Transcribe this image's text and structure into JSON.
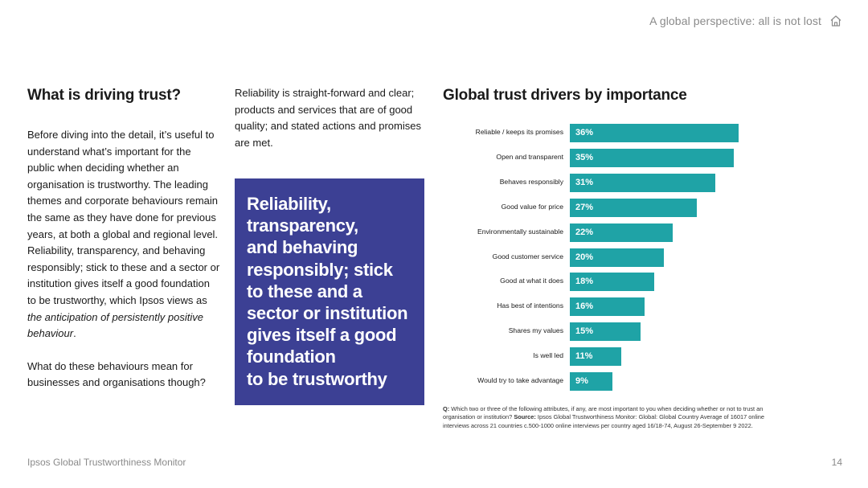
{
  "header": {
    "section_title": "A global perspective: all is not lost",
    "home_icon": "home-icon"
  },
  "left_column": {
    "heading": "What is driving trust?",
    "paragraph_plain": "Before diving into the detail, it’s useful to understand what’s important for the public when deciding whether an organisation is trustworthy. The leading themes and corporate behaviours remain the same as they have done for previous years, at both a global and regional level. Reliability, transparency, and behaving responsibly; stick to these and a sector or institution gives itself a good foundation to be trustworthy, which Ipsos views as ",
    "paragraph_italic": "the anticipation of persistently positive behaviour",
    "paragraph_end": ".",
    "question": "What do these behaviours mean for businesses and organisations though?"
  },
  "middle_column": {
    "text": "Reliability is straight-forward and clear; products and services that are of good quality; and stated actions and promises are met.",
    "quote_lines": [
      "Reliability,",
      "transparency,",
      "and behaving",
      "responsibly; stick",
      "to these and a",
      "sector or institution",
      "gives itself a good",
      "foundation",
      "to be trustworthy"
    ],
    "quote_bg": "#3c4094"
  },
  "chart_data": {
    "type": "bar",
    "orientation": "horizontal",
    "title": "Global trust drivers by importance",
    "categories": [
      "Reliable / keeps its promises",
      "Open and transparent",
      "Behaves responsibly",
      "Good value for price",
      "Environmentally sustainable",
      "Good customer service",
      "Good at what it does",
      "Has best of intentions",
      "Shares my values",
      "Is well led",
      "Would try to take advantage"
    ],
    "values": [
      36,
      35,
      31,
      27,
      22,
      20,
      18,
      16,
      15,
      11,
      9
    ],
    "value_labels": [
      "36%",
      "35%",
      "31%",
      "27%",
      "22%",
      "20%",
      "18%",
      "16%",
      "15%",
      "11%",
      "9%"
    ],
    "xlim": [
      0,
      36
    ],
    "grid": false,
    "bar_color": "#1fa3a6"
  },
  "footnote": {
    "q_label": "Q:",
    "q_text": " Which two or three of the following attributes, if any, are most important to you when deciding whether or not to trust an organisation or institution? ",
    "source_label": "Source:",
    "source_text": " Ipsos Global Trustworthiness Monitor: Global: Global Country Average of 16017 online interviews across 21 countries c.500-1000 online interviews per country aged 16/18-74, August 26-September 9 2022."
  },
  "footer": {
    "left": "Ipsos Global Trustworthiness Monitor",
    "page_number": "14"
  }
}
